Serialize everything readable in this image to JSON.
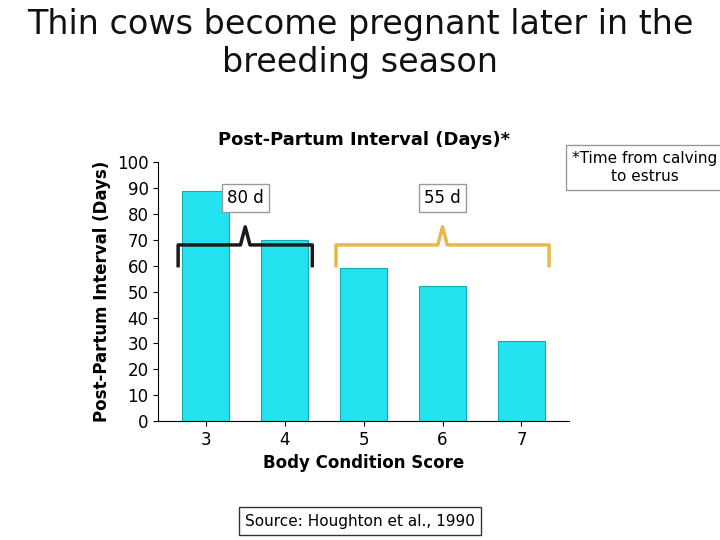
{
  "chart_data": {
    "type": "bar",
    "title": "Thin cows become pregnant later in the breeding season",
    "subtitle": "Post-Partum Interval (Days)*",
    "x_label": "Body Condition Score",
    "y_label": "Post-Partum Interval (Days)",
    "categories": [
      "3",
      "4",
      "5",
      "6",
      "7"
    ],
    "values": [
      89,
      70,
      59,
      52,
      31
    ],
    "color": "#22e3ef",
    "ylim": [
      0,
      100
    ],
    "yticks": [
      0,
      10,
      20,
      30,
      40,
      50,
      60,
      70,
      80,
      90,
      100
    ],
    "grid": false,
    "annotations": [
      {
        "text": "80 d",
        "categories": [
          "3",
          "4"
        ],
        "color": "#1a1a1a"
      },
      {
        "text": "55 d",
        "categories": [
          "5",
          "7"
        ],
        "color": "#e8b84a"
      }
    ],
    "note": "*Time from calving to estrus",
    "source": "Source: Houghton et al., 1990"
  }
}
